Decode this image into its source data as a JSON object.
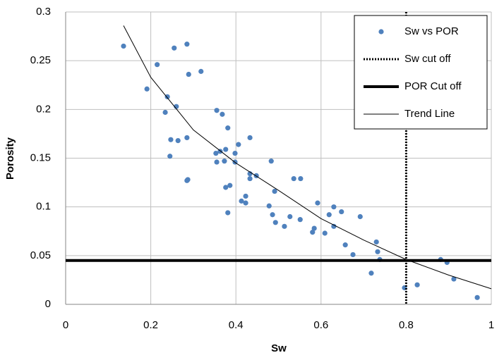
{
  "chart_data": {
    "type": "scatter",
    "x_label": "Sw",
    "y_label": "Porosity",
    "xlim": [
      0,
      1
    ],
    "xticks": [
      0,
      0.2,
      0.4,
      0.6,
      0.8,
      1
    ],
    "ylim": [
      0,
      0.3
    ],
    "yticks": [
      0,
      0.05,
      0.1,
      0.15,
      0.2,
      0.25,
      0.3
    ],
    "grid": true,
    "legend": "top-right",
    "series": [
      {
        "name": "Sw vs POR",
        "color": "#4f81bd",
        "x": [
          0.136,
          0.191,
          0.215,
          0.255,
          0.285,
          0.289,
          0.318,
          0.234,
          0.239,
          0.26,
          0.247,
          0.264,
          0.285,
          0.245,
          0.287,
          0.285,
          0.355,
          0.368,
          0.381,
          0.433,
          0.406,
          0.353,
          0.363,
          0.376,
          0.398,
          0.355,
          0.373,
          0.398,
          0.433,
          0.433,
          0.448,
          0.483,
          0.536,
          0.552,
          0.386,
          0.376,
          0.423,
          0.413,
          0.423,
          0.381,
          0.478,
          0.491,
          0.486,
          0.493,
          0.514,
          0.527,
          0.551,
          0.592,
          0.63,
          0.648,
          0.619,
          0.584,
          0.58,
          0.609,
          0.63,
          0.692,
          0.657,
          0.675,
          0.73,
          0.733,
          0.738,
          0.718,
          0.796,
          0.826,
          0.881,
          0.896,
          0.912,
          0.967
        ],
        "values": [
          0.265,
          0.221,
          0.246,
          0.263,
          0.267,
          0.236,
          0.239,
          0.197,
          0.213,
          0.203,
          0.169,
          0.168,
          0.171,
          0.152,
          0.128,
          0.127,
          0.199,
          0.195,
          0.181,
          0.171,
          0.164,
          0.155,
          0.157,
          0.159,
          0.155,
          0.146,
          0.147,
          0.146,
          0.134,
          0.129,
          0.132,
          0.147,
          0.129,
          0.129,
          0.122,
          0.12,
          0.111,
          0.106,
          0.104,
          0.094,
          0.101,
          0.116,
          0.092,
          0.084,
          0.08,
          0.09,
          0.087,
          0.104,
          0.1,
          0.095,
          0.092,
          0.078,
          0.074,
          0.073,
          0.08,
          0.09,
          0.061,
          0.051,
          0.064,
          0.054,
          0.046,
          0.032,
          0.017,
          0.02,
          0.046,
          0.043,
          0.026,
          0.007
        ]
      },
      {
        "name": "Sw cut off",
        "color": "#000000",
        "x": 0.8
      },
      {
        "name": "POR Cut off",
        "color": "#000000",
        "y": 0.045
      },
      {
        "name": "Trend Line",
        "color": "#000000",
        "x": [
          0.136,
          0.2,
          0.3,
          0.4,
          0.5,
          0.6,
          0.7,
          0.8,
          0.9,
          1
        ],
        "values": [
          0.286,
          0.233,
          0.179,
          0.145,
          0.117,
          0.088,
          0.066,
          0.046,
          0.03,
          0.016
        ]
      }
    ]
  }
}
